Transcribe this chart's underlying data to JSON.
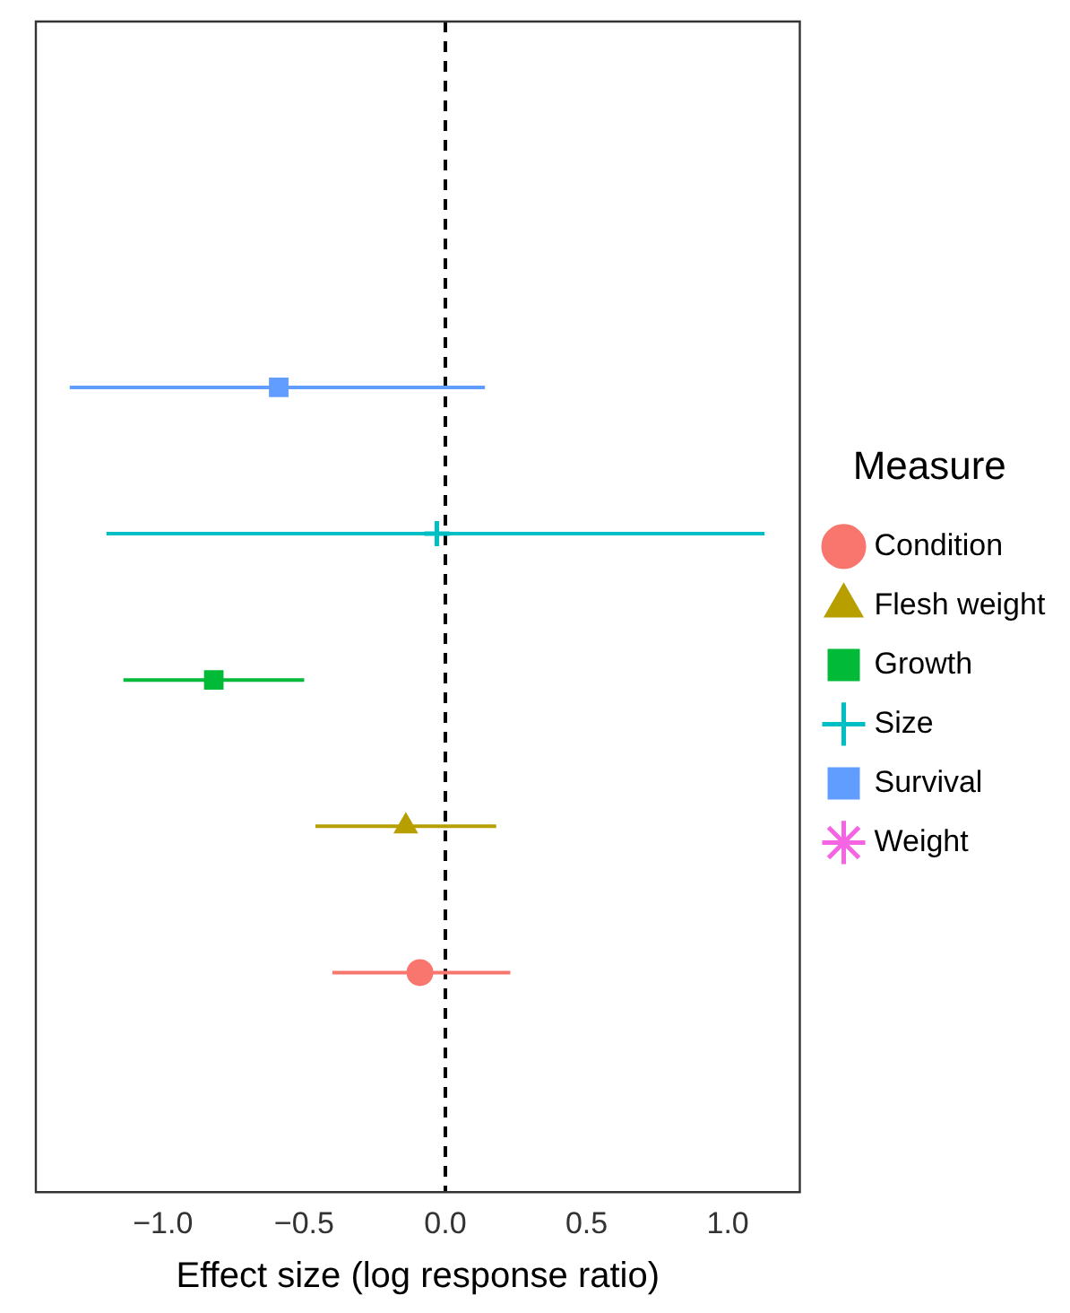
{
  "chart_data": {
    "type": "scatter",
    "orientation": "horizontal",
    "xlabel": "Effect size (log response ratio)",
    "legend_title": "Measure",
    "legend": "right",
    "grid": false,
    "tick_labels": "x",
    "categories": [
      null,
      null,
      null,
      null,
      null,
      null,
      null,
      null
    ],
    "xlim": [
      -1.45,
      1.255
    ],
    "xticks": [
      {
        "value": -1,
        "label": "−1.0"
      },
      {
        "value": -0.5,
        "label": "−0.5"
      },
      {
        "value": 0,
        "label": "0.0"
      },
      {
        "value": 0.5,
        "label": "0.5"
      },
      {
        "value": 1,
        "label": "1.0"
      }
    ],
    "ref_lines": [
      {
        "axis": "x",
        "value": 0,
        "line_style": "dashed",
        "color": "#000000"
      }
    ],
    "series": [
      {
        "name": "Condition",
        "color": "#f8766d",
        "marker": "circle",
        "values": [
          null,
          null,
          null,
          null,
          null,
          null,
          -0.09,
          null
        ],
        "errors": [
          null,
          null,
          null,
          null,
          null,
          null,
          [
            -0.4,
            0.23
          ],
          null
        ]
      },
      {
        "name": "Flesh weight",
        "color": "#b79f00",
        "marker": "triangle",
        "values": [
          null,
          null,
          null,
          null,
          null,
          -0.14,
          null,
          null
        ],
        "errors": [
          null,
          null,
          null,
          null,
          null,
          [
            -0.46,
            0.18
          ],
          null,
          null
        ]
      },
      {
        "name": "Growth",
        "color": "#00ba38",
        "marker": "square",
        "values": [
          null,
          null,
          null,
          null,
          -0.82,
          null,
          null,
          null
        ],
        "errors": [
          null,
          null,
          null,
          null,
          [
            -1.14,
            -0.5
          ],
          null,
          null,
          null
        ]
      },
      {
        "name": "Size",
        "color": "#00bfc4",
        "marker": "cross",
        "values": [
          null,
          null,
          null,
          -0.03,
          null,
          null,
          null,
          null
        ],
        "errors": [
          null,
          null,
          null,
          [
            -1.2,
            1.13
          ],
          null,
          null,
          null,
          null
        ]
      },
      {
        "name": "Survival",
        "color": "#619cff",
        "marker": "square",
        "values": [
          null,
          null,
          -0.59,
          null,
          null,
          null,
          null,
          null
        ],
        "errors": [
          null,
          null,
          [
            -1.33,
            0.14
          ],
          null,
          null,
          null,
          null,
          null
        ]
      },
      {
        "name": "Weight",
        "color": "#f564e3",
        "marker": "star",
        "values": [
          null,
          null,
          null,
          null,
          null,
          null,
          null,
          null
        ]
      }
    ]
  }
}
